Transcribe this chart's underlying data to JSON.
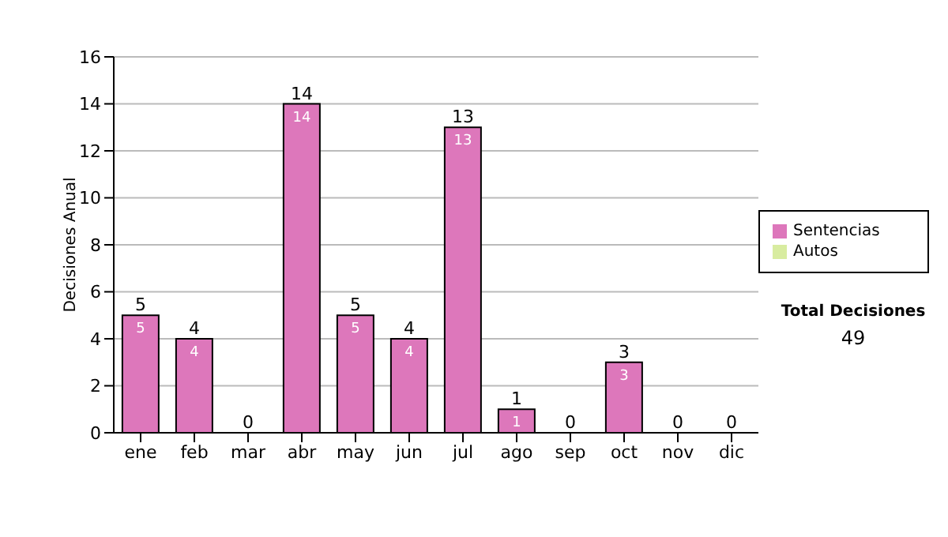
{
  "chart_data": {
    "type": "bar",
    "ylabel": "Decisiones Anual",
    "categories": [
      "ene",
      "feb",
      "mar",
      "abr",
      "may",
      "jun",
      "jul",
      "ago",
      "sep",
      "oct",
      "nov",
      "dic"
    ],
    "series": [
      {
        "name": "Sentencias",
        "color": "#dd77bb",
        "values": [
          5,
          4,
          0,
          14,
          5,
          4,
          13,
          1,
          0,
          3,
          0,
          0
        ],
        "value_labels": [
          "5",
          "4",
          null,
          "14",
          "5",
          "4",
          "13",
          "1",
          null,
          "3",
          null,
          null
        ]
      },
      {
        "name": "Autos",
        "color": "#d8eca0",
        "values": [
          0,
          0,
          0,
          0,
          0,
          0,
          0,
          0,
          0,
          0,
          0,
          0
        ]
      }
    ],
    "stacked": true,
    "totals": [
      "5",
      "4",
      "0",
      "14",
      "5",
      "4",
      "13",
      "1",
      "0",
      "3",
      "0",
      "0"
    ],
    "ylim": [
      0,
      16
    ],
    "yticks": [
      0,
      2,
      4,
      6,
      8,
      10,
      12,
      14,
      16
    ],
    "grid": "y",
    "legend": "right",
    "annotations": [
      "Total Decisiones",
      "49"
    ]
  }
}
